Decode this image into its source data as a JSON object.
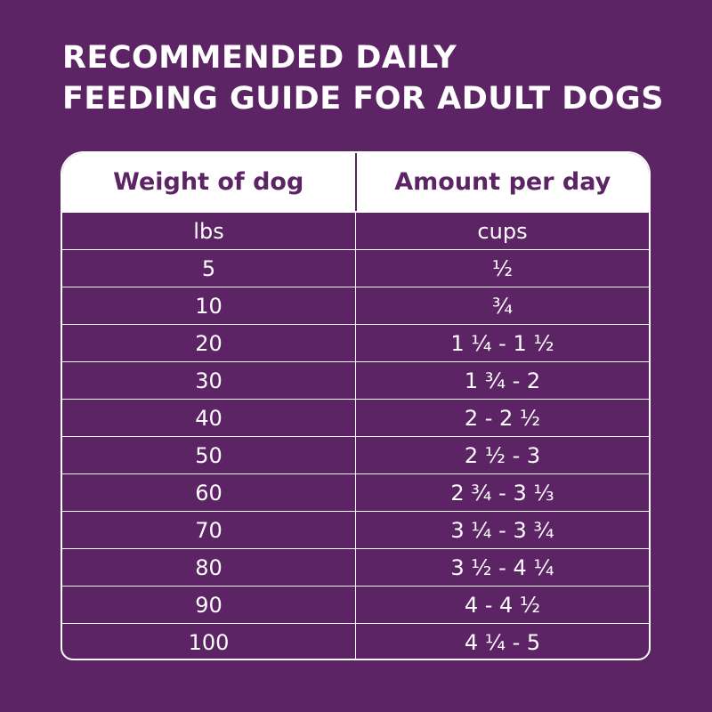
{
  "title": {
    "line1": "RECOMMENDED DAILY",
    "line2": "FEEDING GUIDE FOR ADULT DOGS"
  },
  "table": {
    "headers": [
      "Weight of dog",
      "Amount per day"
    ],
    "units": [
      "lbs",
      "cups"
    ],
    "rows": [
      [
        "5",
        "½"
      ],
      [
        "10",
        "¾"
      ],
      [
        "20",
        "1 ¼  -  1 ½"
      ],
      [
        "30",
        "1 ¾  -  2"
      ],
      [
        "40",
        "2  -  2 ½"
      ],
      [
        "50",
        "2 ½  -  3"
      ],
      [
        "60",
        "2 ¾  -  3 ⅓"
      ],
      [
        "70",
        "3 ¼  -  3 ¾"
      ],
      [
        "80",
        "3 ½  -  4 ¼"
      ],
      [
        "90",
        "4  -  4 ½"
      ],
      [
        "100",
        "4 ¼  -  5"
      ]
    ]
  },
  "colors": {
    "background": "#5c2464",
    "header_bg": "#ffffff",
    "text": "#ffffff"
  }
}
